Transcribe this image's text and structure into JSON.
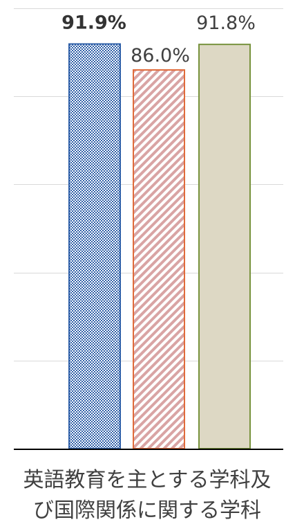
{
  "chart_data": {
    "type": "bar",
    "title": "",
    "xlabel": "",
    "ylabel": "",
    "categories": [
      "英語教育を主とする学科及び国際関係に関する学科"
    ],
    "category_lines": [
      "英語教育を主とする学科及",
      "び国際関係に関する学科"
    ],
    "ylim": [
      0,
      100
    ],
    "y_gridlines": [
      20,
      40,
      60,
      80,
      100
    ],
    "grid": true,
    "legend": "none",
    "series": [
      {
        "values": [
          91.9
        ],
        "label": "91.9%",
        "fill": "pattern-check",
        "color": "#2e5fa8",
        "bold_label": true
      },
      {
        "values": [
          86.0
        ],
        "label": "86.0%",
        "fill": "pattern-diagonal",
        "color": "#e06b3a",
        "bold_label": false
      },
      {
        "values": [
          91.8
        ],
        "label": "91.8%",
        "fill": "solid",
        "color": "#ddd8c4",
        "border": "#77923c",
        "bold_label": false
      }
    ]
  }
}
